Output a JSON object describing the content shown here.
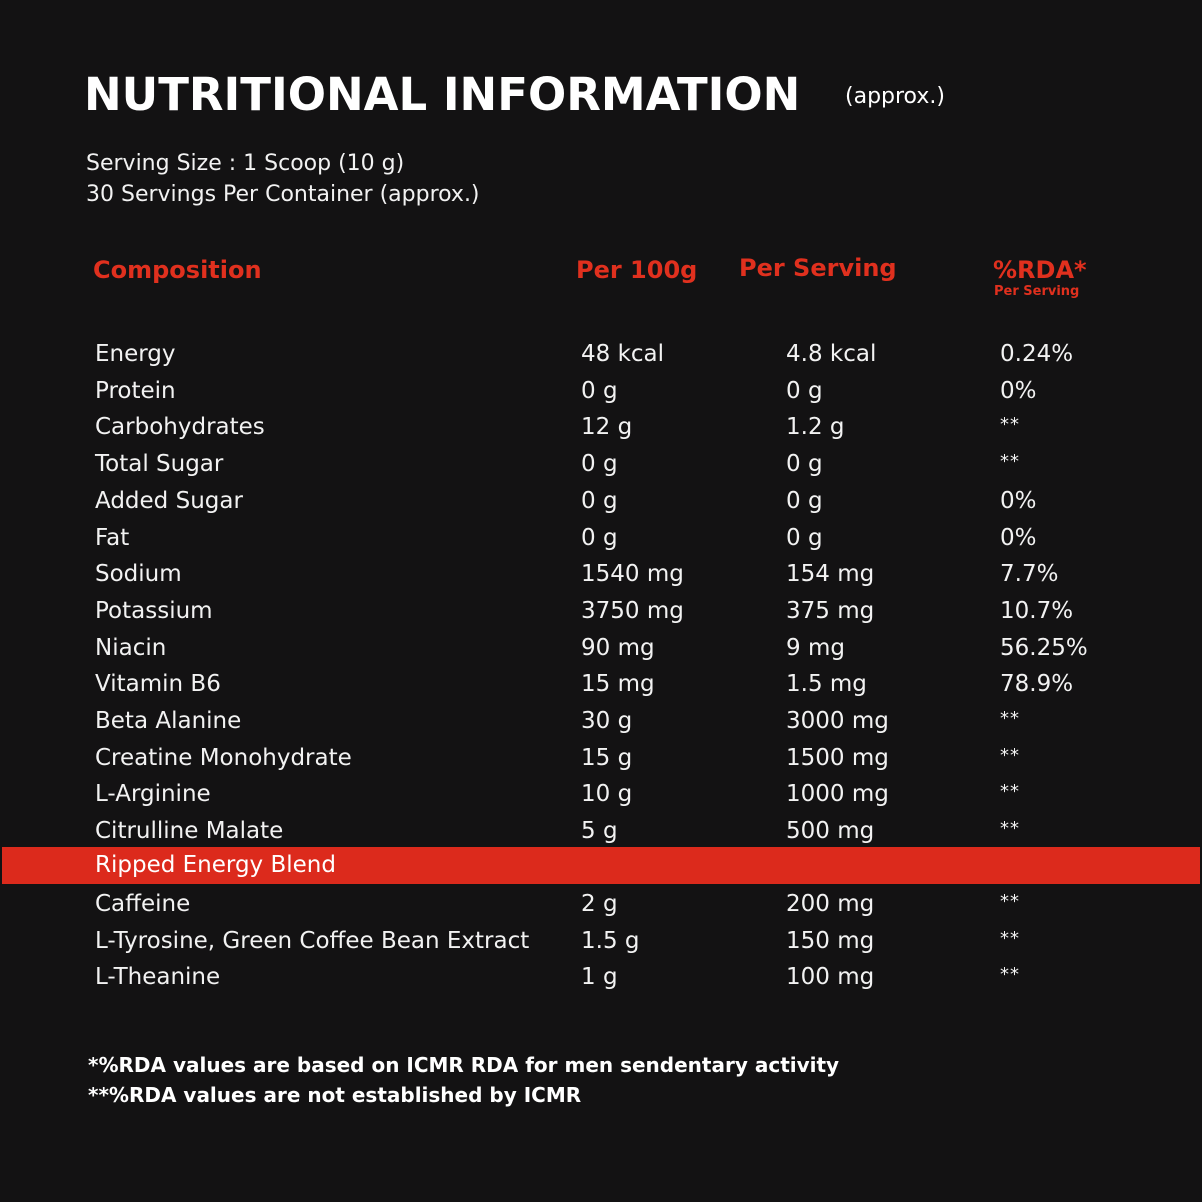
{
  "title": "NUTRITIONAL INFORMATION",
  "title_note": "(approx.)",
  "serving_size": "Serving Size : 1 Scoop (10 g)",
  "servings_per_container": "30 Servings Per Container (approx.)",
  "headers": {
    "composition": "Composition",
    "per100g": "Per 100g",
    "per_serving": "Per Serving",
    "rda": "%RDA*",
    "rda_sub": "Per Serving"
  },
  "rows": [
    {
      "name": "Energy",
      "per100g": "48 kcal",
      "serving": "4.8 kcal",
      "rda": "0.24%"
    },
    {
      "name": "Protein",
      "per100g": "0 g",
      "serving": "0 g",
      "rda": "0%"
    },
    {
      "name": "Carbohydrates",
      "per100g": "12 g",
      "serving": "1.2 g",
      "rda": "**"
    },
    {
      "name": "Total Sugar",
      "per100g": "0 g",
      "serving": "0 g",
      "rda": "**"
    },
    {
      "name": "Added Sugar",
      "per100g": "0 g",
      "serving": "0 g",
      "rda": "0%"
    },
    {
      "name": "Fat",
      "per100g": "0 g",
      "serving": "0 g",
      "rda": "0%"
    },
    {
      "name": "Sodium",
      "per100g": "1540 mg",
      "serving": "154 mg",
      "rda": "7.7%"
    },
    {
      "name": "Potassium",
      "per100g": "3750 mg",
      "serving": "375 mg",
      "rda": "10.7%"
    },
    {
      "name": "Niacin",
      "per100g": "90 mg",
      "serving": "9 mg",
      "rda": "56.25%"
    },
    {
      "name": "Vitamin B6",
      "per100g": "15 mg",
      "serving": "1.5 mg",
      "rda": "78.9%"
    },
    {
      "name": "Beta Alanine",
      "per100g": "30 g",
      "serving": "3000 mg",
      "rda": "**"
    },
    {
      "name": "Creatine Monohydrate",
      "per100g": "15 g",
      "serving": "1500 mg",
      "rda": "**"
    },
    {
      "name": "L-Arginine",
      "per100g": "10 g",
      "serving": "1000 mg",
      "rda": "**"
    },
    {
      "name": "Citrulline Malate",
      "per100g": "5 g",
      "serving": "500 mg",
      "rda": "**"
    }
  ],
  "blend": {
    "label": "Ripped Energy Blend",
    "rows": [
      {
        "name": "Caffeine",
        "per100g": "2 g",
        "serving": "200 mg",
        "rda": "**"
      },
      {
        "name": "L-Tyrosine, Green Coffee Bean Extract",
        "per100g": "1.5 g",
        "serving": "150 mg",
        "rda": "**"
      },
      {
        "name": "L-Theanine",
        "per100g": "1 g",
        "serving": "100 mg",
        "rda": "**"
      }
    ]
  },
  "footnotes": [
    "*%RDA values are based on ICMR RDA for men sendentary activity",
    "**%RDA values are not established by ICMR"
  ],
  "colors": {
    "background": "#131213",
    "accent": "#dc2a1c",
    "text": "#f2f2f2"
  }
}
